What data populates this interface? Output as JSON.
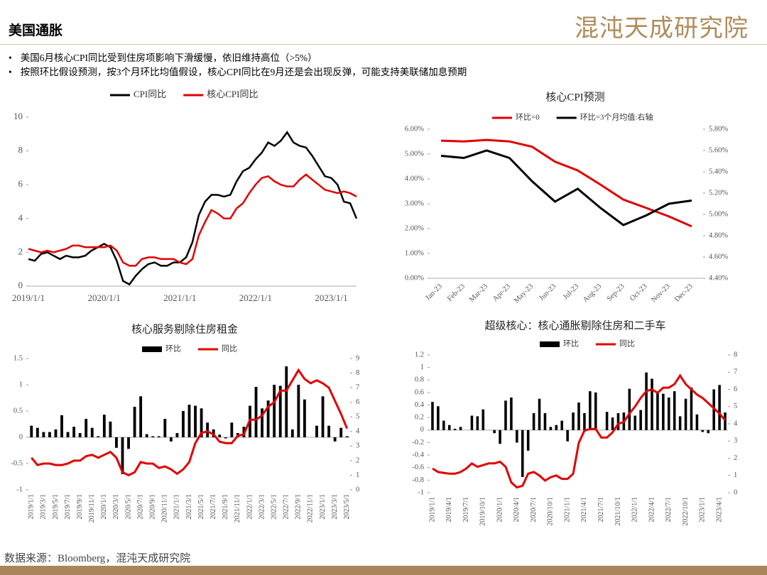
{
  "header": {
    "title": "美国通胀",
    "logo": "混沌天成研究院"
  },
  "bullets": [
    "美国6月核心CPI同比受到住房项影响下滑缓慢，依旧维持高位（>5%）",
    "按照环比假设预测，按3个月环比均值假设，核心CPI同比在9月还是会出现反弹，可能支持美联储加息预期"
  ],
  "source": "数据来源：Bloomberg，混沌天成研究院",
  "chart_data": [
    {
      "type": "line",
      "categories": [
        "2019/1/1",
        null,
        null,
        null,
        null,
        null,
        null,
        null,
        null,
        null,
        null,
        null,
        "2020/1/1",
        null,
        null,
        null,
        null,
        null,
        null,
        null,
        null,
        null,
        null,
        null,
        "2021/1/1",
        null,
        null,
        null,
        null,
        null,
        null,
        null,
        null,
        null,
        null,
        null,
        "2022/1/1",
        null,
        null,
        null,
        null,
        null,
        null,
        null,
        null,
        null,
        null,
        null,
        "2023/1/1",
        null,
        null,
        null,
        null
      ],
      "series": [
        {
          "name": "CPI同比",
          "color": "#000000",
          "values": [
            1.6,
            1.5,
            1.9,
            2.0,
            1.8,
            1.6,
            1.8,
            1.7,
            1.7,
            1.8,
            2.1,
            2.3,
            2.5,
            2.3,
            1.5,
            0.3,
            0.1,
            0.6,
            1.0,
            1.3,
            1.4,
            1.2,
            1.2,
            1.4,
            1.4,
            1.7,
            2.6,
            4.2,
            5.0,
            5.4,
            5.4,
            5.3,
            5.4,
            6.2,
            6.8,
            7.0,
            7.5,
            7.9,
            8.5,
            8.3,
            8.6,
            9.1,
            8.5,
            8.3,
            8.2,
            7.7,
            7.1,
            6.5,
            6.4,
            6.0,
            5.0,
            4.9,
            4.0
          ]
        },
        {
          "name": "核心CPI同比",
          "color": "#e00000",
          "values": [
            2.2,
            2.1,
            2.0,
            2.1,
            2.0,
            2.1,
            2.2,
            2.4,
            2.4,
            2.3,
            2.3,
            2.3,
            2.3,
            2.4,
            2.1,
            1.4,
            1.2,
            1.2,
            1.6,
            1.7,
            1.7,
            1.6,
            1.6,
            1.6,
            1.4,
            1.3,
            1.6,
            3.0,
            3.8,
            4.5,
            4.3,
            4.0,
            4.0,
            4.6,
            4.9,
            5.5,
            6.0,
            6.4,
            6.5,
            6.2,
            6.0,
            5.9,
            5.9,
            6.3,
            6.6,
            6.3,
            6.0,
            5.7,
            5.6,
            5.5,
            5.6,
            5.5,
            5.3
          ]
        }
      ],
      "ylim": [
        0,
        10
      ],
      "yticks": [
        0,
        2,
        4,
        6,
        8,
        10
      ],
      "legend": "top"
    },
    {
      "type": "line",
      "title": "核心CPI预测",
      "categories": [
        "Jan-23",
        "Feb-23",
        "Mar-23",
        "Apr-23",
        "May-23",
        "Jun-23",
        "Jul-23",
        "Aug-23",
        "Sep-23",
        "Oct-23",
        "Nov-23",
        "Dec-23"
      ],
      "series": [
        {
          "name": "环比=0",
          "color": "#e00000",
          "values": [
            5.54,
            5.51,
            5.57,
            5.51,
            5.29,
            4.69,
            4.34,
            3.77,
            3.17,
            2.83,
            2.49,
            2.09
          ]
        },
        {
          "name": "环比=3个月均值:右轴",
          "color": "#000000",
          "axis": "y2",
          "values": [
            5.55,
            5.53,
            5.6,
            5.53,
            5.31,
            5.12,
            5.24,
            5.06,
            4.9,
            4.99,
            5.1,
            5.13
          ]
        }
      ],
      "ylim": [
        0,
        6
      ],
      "yticks": [
        {
          "value": 0,
          "label": "0.00%"
        },
        {
          "value": 1,
          "label": "1.00%"
        },
        {
          "value": 2,
          "label": "2.00%"
        },
        {
          "value": 3,
          "label": "3.00%"
        },
        {
          "value": 4,
          "label": "4.00%"
        },
        {
          "value": 5,
          "label": "5.00%"
        },
        {
          "value": 6,
          "label": "6.00%"
        }
      ],
      "y2lim": [
        4.4,
        5.8
      ],
      "y2ticks": [
        {
          "value": 4.4,
          "label": "4.40%"
        },
        {
          "value": 4.6,
          "label": "4.60%"
        },
        {
          "value": 4.8,
          "label": "4.80%"
        },
        {
          "value": 5.0,
          "label": "5.00%"
        },
        {
          "value": 5.2,
          "label": "5.20%"
        },
        {
          "value": 5.4,
          "label": "5.40%"
        },
        {
          "value": 5.6,
          "label": "5.60%"
        },
        {
          "value": 5.8,
          "label": "5.80%"
        }
      ],
      "legend": "top"
    },
    {
      "type": "combo",
      "title": "核心服务剔除住房租金",
      "categories": [
        "2019/1/1",
        null,
        "2019/3/1",
        null,
        "2019/5/1",
        null,
        "2019/7/1",
        null,
        "2019/9/1",
        null,
        "2019/11/1",
        null,
        "2020/1/1",
        null,
        "2020/3/1",
        null,
        "2020/5/1",
        null,
        "2020/7/1",
        null,
        "2020/9/1",
        null,
        "2020/11/1",
        null,
        "2021/1/1",
        null,
        "2021/3/1",
        null,
        "2021/5/1",
        null,
        "2021/7/1",
        null,
        "2021/9/1",
        null,
        "2021/11/1",
        null,
        "2022/1/1",
        null,
        "2022/3/1",
        null,
        "2022/5/1",
        null,
        "2022/7/1",
        null,
        "2022/9/1",
        null,
        "2022/11/1",
        null,
        "2023/1/1",
        null,
        "2023/3/1",
        null,
        "2023/5/1"
      ],
      "series": [
        {
          "name": "环比",
          "type": "bar",
          "color": "#000000",
          "values": [
            0.22,
            0.18,
            0.1,
            0.1,
            0.15,
            0.42,
            0.1,
            0.2,
            0.08,
            0.35,
            0.18,
            0.02,
            0.43,
            0.3,
            -0.2,
            -0.7,
            -0.22,
            0.58,
            0.78,
            0.06,
            0.02,
            0.02,
            0.35,
            -0.08,
            0.08,
            0.5,
            0.62,
            0.6,
            0.55,
            0.28,
            0.15,
            0.05,
            -0.02,
            0.28,
            0.08,
            0.2,
            0.6,
            0.96,
            0.55,
            0.7,
            1.0,
            0.98,
            1.35,
            0.15,
            1.0,
            0.72,
            0.0,
            0.22,
            0.78,
            0.22,
            -0.08,
            0.18,
            0.02
          ]
        },
        {
          "name": "同比",
          "type": "line",
          "color": "#e00000",
          "axis": "y2",
          "values": [
            2.2,
            1.7,
            1.8,
            1.8,
            1.7,
            1.7,
            1.8,
            2.0,
            2.0,
            2.3,
            2.4,
            2.2,
            2.4,
            2.6,
            2.2,
            1.2,
            1.0,
            1.2,
            1.9,
            1.8,
            1.8,
            1.5,
            1.6,
            1.4,
            1.1,
            1.4,
            1.9,
            3.2,
            3.9,
            4.0,
            3.8,
            3.3,
            3.2,
            3.2,
            3.7,
            3.8,
            4.8,
            4.8,
            5.1,
            5.7,
            6.0,
            6.8,
            6.8,
            7.5,
            8.2,
            7.6,
            7.3,
            7.5,
            7.3,
            7.0,
            6.1,
            5.2,
            4.2
          ]
        }
      ],
      "ylim": [
        -1,
        1.5
      ],
      "yticks": [
        -1,
        -0.5,
        0,
        0.5,
        1,
        1.5
      ],
      "y2lim": [
        0,
        9
      ],
      "y2ticks": [
        0,
        1,
        2,
        3,
        4,
        5,
        6,
        7,
        8,
        9
      ],
      "legend": "top"
    },
    {
      "type": "combo",
      "title": "超级核心：核心通胀剔除住房和二手车",
      "categories": [
        "2019/1/1",
        null,
        null,
        "2019/4/1",
        null,
        null,
        "2019/7/1",
        null,
        null,
        "2019/10/1",
        null,
        null,
        "2020/1/1",
        null,
        null,
        "2020/4/1",
        null,
        null,
        "2020/7/1",
        null,
        null,
        "2020/10/1",
        null,
        null,
        "2021/1/1",
        null,
        null,
        "2021/4/1",
        null,
        null,
        "2021/7/1",
        null,
        null,
        "2021/10/1",
        null,
        null,
        "2022/1/1",
        null,
        null,
        "2022/4/1",
        null,
        null,
        "2022/7/1",
        null,
        null,
        "2022/10/1",
        null,
        null,
        "2023/1/1",
        null,
        null,
        "2023/4/1",
        null
      ],
      "series": [
        {
          "name": "环比",
          "type": "bar",
          "color": "#000000",
          "values": [
            0.45,
            0.38,
            0.15,
            0.08,
            0.02,
            0.05,
            0.0,
            0.23,
            0.22,
            0.33,
            0.0,
            -0.05,
            -0.22,
            0.47,
            0.52,
            -0.2,
            -0.75,
            -0.33,
            0.27,
            0.5,
            0.27,
            0.05,
            0.08,
            0.15,
            -0.18,
            0.28,
            0.44,
            0.27,
            0.62,
            0.6,
            0.0,
            0.29,
            0.2,
            0.27,
            0.28,
            0.66,
            0.23,
            0.32,
            0.92,
            0.82,
            0.6,
            0.58,
            0.52,
            0.62,
            0.22,
            0.5,
            0.68,
            0.25,
            -0.03,
            -0.05,
            0.65,
            0.72,
            0.28
          ]
        },
        {
          "name": "同比",
          "type": "line",
          "color": "#e00000",
          "axis": "y2",
          "values": [
            1.4,
            1.2,
            1.15,
            1.1,
            1.1,
            1.2,
            1.4,
            1.7,
            1.5,
            1.6,
            1.7,
            1.7,
            1.8,
            1.5,
            0.6,
            0.3,
            0.4,
            1.1,
            1.2,
            1.0,
            0.7,
            0.9,
            1.0,
            0.8,
            0.8,
            1.1,
            2.9,
            3.6,
            3.7,
            3.7,
            3.2,
            3.2,
            3.5,
            4.0,
            4.1,
            4.6,
            5.0,
            5.5,
            5.9,
            6.0,
            5.8,
            6.1,
            6.1,
            6.3,
            6.8,
            6.3,
            6.0,
            5.7,
            5.5,
            5.2,
            4.9,
            4.6,
            4.2
          ]
        }
      ],
      "ylim": [
        -1,
        1.2
      ],
      "yticks": [
        -1,
        -0.8,
        -0.6,
        -0.4,
        -0.2,
        0,
        0.2,
        0.4,
        0.6,
        0.8,
        1,
        1.2
      ],
      "y2lim": [
        0,
        8
      ],
      "y2ticks": [
        0,
        1,
        2,
        3,
        4,
        5,
        6,
        7,
        8
      ],
      "legend": "top"
    }
  ]
}
